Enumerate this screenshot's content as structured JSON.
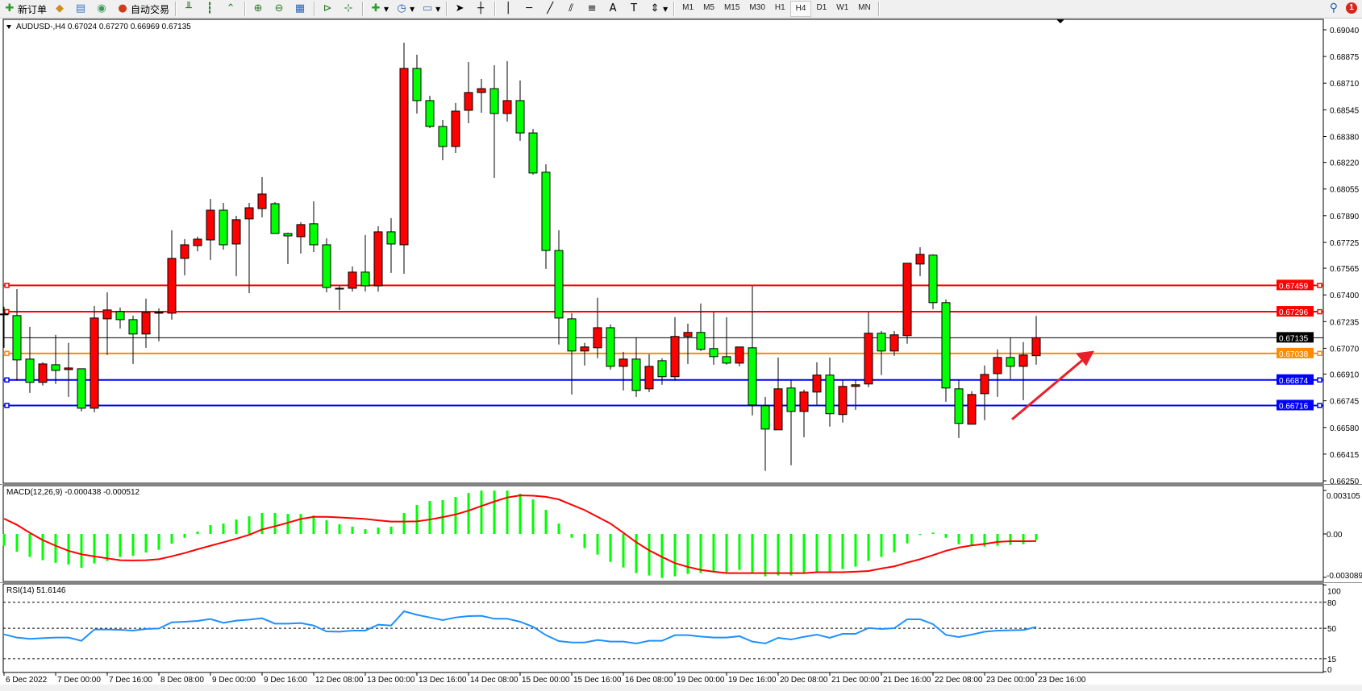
{
  "toolbar": {
    "new_order": "新订单",
    "auto_trading": "自动交易",
    "timeframes": [
      "M1",
      "M5",
      "M15",
      "M30",
      "H1",
      "H4",
      "D1",
      "W1",
      "MN"
    ],
    "active_timeframe": "H4",
    "notification_count": "1"
  },
  "chart": {
    "symbol_header": "AUDUSD-,H4  0.67024 0.67270 0.66969 0.67135",
    "bull_color": "#ff0000",
    "bear_color": "#00ff00",
    "price_ticks": [
      "0.69040",
      "0.68875",
      "0.68710",
      "0.68545",
      "0.68380",
      "0.68220",
      "0.68055",
      "0.67890",
      "0.67725",
      "0.67565",
      "0.67400",
      "0.67235",
      "0.67070",
      "0.66910",
      "0.66745",
      "0.66580",
      "0.66415",
      "0.66250"
    ],
    "bid_price": "0.67135",
    "levels": [
      {
        "price": "0.67459",
        "color": "#ff0000"
      },
      {
        "price": "0.67296",
        "color": "#ff0000"
      },
      {
        "price": "0.67038",
        "color": "#ff8c00"
      },
      {
        "price": "0.66874",
        "color": "#0000ff"
      },
      {
        "price": "0.66716",
        "color": "#0000ff"
      }
    ],
    "annotation": {
      "type": "arrow",
      "color": "#e8202a",
      "from_price": 0.6663,
      "to_price": 0.6702,
      "direction": "up-right"
    },
    "time_labels": [
      "6 Dec 2022",
      "7 Dec 00:00",
      "7 Dec 16:00",
      "8 Dec 08:00",
      "9 Dec 00:00",
      "9 Dec 16:00",
      "12 Dec 08:00",
      "13 Dec 00:00",
      "13 Dec 16:00",
      "14 Dec 08:00",
      "15 Dec 00:00",
      "15 Dec 16:00",
      "16 Dec 08:00",
      "19 Dec 00:00",
      "19 Dec 16:00",
      "20 Dec 08:00",
      "21 Dec 00:00",
      "21 Dec 16:00",
      "22 Dec 08:00",
      "23 Dec 00:00",
      "23 Dec 16:00"
    ],
    "ohlc": [
      [
        0.67282,
        0.67327,
        0.67073,
        0.67282
      ],
      [
        0.67272,
        0.67436,
        0.66869,
        0.66998
      ],
      [
        0.67003,
        0.67202,
        0.66794,
        0.66859
      ],
      [
        0.66859,
        0.66983,
        0.66839,
        0.66973
      ],
      [
        0.66968,
        0.67153,
        0.66849,
        0.66933
      ],
      [
        0.66938,
        0.67103,
        0.66769,
        0.66948
      ],
      [
        0.66943,
        0.66943,
        0.66679,
        0.66699
      ],
      [
        0.66699,
        0.67332,
        0.66674,
        0.67257
      ],
      [
        0.67252,
        0.67416,
        0.67028,
        0.67307
      ],
      [
        0.67297,
        0.67322,
        0.67192,
        0.67247
      ],
      [
        0.67247,
        0.67272,
        0.66973,
        0.67158
      ],
      [
        0.67158,
        0.67377,
        0.67073,
        0.67292
      ],
      [
        0.67287,
        0.67317,
        0.67113,
        0.67292
      ],
      [
        0.67287,
        0.678,
        0.67247,
        0.67626
      ],
      [
        0.67626,
        0.67745,
        0.67521,
        0.6771
      ],
      [
        0.67705,
        0.6776,
        0.6767,
        0.67745
      ],
      [
        0.6774,
        0.67994,
        0.67616,
        0.67924
      ],
      [
        0.67924,
        0.67969,
        0.6768,
        0.6771
      ],
      [
        0.67715,
        0.6789,
        0.67516,
        0.67865
      ],
      [
        0.6787,
        0.67969,
        0.67411,
        0.67939
      ],
      [
        0.67934,
        0.68129,
        0.6788,
        0.68024
      ],
      [
        0.67964,
        0.67974,
        0.6778,
        0.6778
      ],
      [
        0.6778,
        0.67785,
        0.67591,
        0.67765
      ],
      [
        0.6776,
        0.6785,
        0.67656,
        0.67835
      ],
      [
        0.6784,
        0.67979,
        0.67665,
        0.6771
      ],
      [
        0.6771,
        0.6775,
        0.67416,
        0.67446
      ],
      [
        0.67436,
        0.67456,
        0.67307,
        0.67441
      ],
      [
        0.67441,
        0.67576,
        0.67421,
        0.67541
      ],
      [
        0.67541,
        0.6777,
        0.67421,
        0.67456
      ],
      [
        0.67456,
        0.67825,
        0.67421,
        0.6779
      ],
      [
        0.6779,
        0.67875,
        0.67536,
        0.67715
      ],
      [
        0.6771,
        0.6896,
        0.67531,
        0.68801
      ],
      [
        0.68801,
        0.68886,
        0.68522,
        0.68602
      ],
      [
        0.68602,
        0.68632,
        0.68432,
        0.68442
      ],
      [
        0.68442,
        0.68482,
        0.68233,
        0.68318
      ],
      [
        0.68318,
        0.68587,
        0.68278,
        0.68537
      ],
      [
        0.68542,
        0.68841,
        0.68462,
        0.68652
      ],
      [
        0.68652,
        0.68736,
        0.68527,
        0.68676
      ],
      [
        0.68676,
        0.68821,
        0.68124,
        0.68522
      ],
      [
        0.68522,
        0.68846,
        0.68472,
        0.68602
      ],
      [
        0.68602,
        0.68726,
        0.68353,
        0.68402
      ],
      [
        0.68402,
        0.68427,
        0.68144,
        0.68154
      ],
      [
        0.68159,
        0.68208,
        0.67561,
        0.67675
      ],
      [
        0.67675,
        0.678,
        0.67093,
        0.67257
      ],
      [
        0.67252,
        0.67287,
        0.66784,
        0.67053
      ],
      [
        0.67053,
        0.67103,
        0.66963,
        0.67078
      ],
      [
        0.67073,
        0.67382,
        0.67008,
        0.67197
      ],
      [
        0.67197,
        0.67217,
        0.66938,
        0.66958
      ],
      [
        0.66958,
        0.67048,
        0.66809,
        0.67003
      ],
      [
        0.67003,
        0.67138,
        0.66769,
        0.66809
      ],
      [
        0.66819,
        0.67033,
        0.66799,
        0.66958
      ],
      [
        0.66993,
        0.67008,
        0.66844,
        0.66894
      ],
      [
        0.66894,
        0.67262,
        0.66869,
        0.67143
      ],
      [
        0.67143,
        0.67222,
        0.66973,
        0.67168
      ],
      [
        0.67168,
        0.67347,
        0.67053,
        0.67063
      ],
      [
        0.67068,
        0.67292,
        0.66968,
        0.67018
      ],
      [
        0.67018,
        0.67262,
        0.66968,
        0.66978
      ],
      [
        0.66978,
        0.67078,
        0.66958,
        0.67078
      ],
      [
        0.67073,
        0.67456,
        0.66655,
        0.66719
      ],
      [
        0.66714,
        0.66769,
        0.66311,
        0.6657
      ],
      [
        0.66565,
        0.67013,
        0.66565,
        0.66819
      ],
      [
        0.66824,
        0.66874,
        0.66346,
        0.66679
      ],
      [
        0.66679,
        0.66814,
        0.6652,
        0.66799
      ],
      [
        0.66799,
        0.66983,
        0.66719,
        0.66904
      ],
      [
        0.66904,
        0.67013,
        0.66585,
        0.66665
      ],
      [
        0.6666,
        0.66874,
        0.6661,
        0.66834
      ],
      [
        0.66834,
        0.66874,
        0.66689,
        0.66844
      ],
      [
        0.66849,
        0.67292,
        0.66829,
        0.67163
      ],
      [
        0.67163,
        0.67177,
        0.66904,
        0.67053
      ],
      [
        0.67053,
        0.67177,
        0.67023,
        0.67153
      ],
      [
        0.67148,
        0.67596,
        0.67098,
        0.67596
      ],
      [
        0.67591,
        0.67695,
        0.67516,
        0.67651
      ],
      [
        0.67646,
        0.67651,
        0.67312,
        0.67352
      ],
      [
        0.67352,
        0.67372,
        0.66739,
        0.66824
      ],
      [
        0.66819,
        0.66874,
        0.66515,
        0.66605
      ],
      [
        0.666,
        0.66804,
        0.666,
        0.66784
      ],
      [
        0.66789,
        0.66963,
        0.66625,
        0.66908
      ],
      [
        0.66913,
        0.67063,
        0.66769,
        0.67013
      ],
      [
        0.67013,
        0.67138,
        0.66879,
        0.66958
      ],
      [
        0.66958,
        0.67108,
        0.66749,
        0.67028
      ],
      [
        0.67024,
        0.6727,
        0.66969,
        0.67135
      ]
    ]
  },
  "macd": {
    "label": "MACD(12,26,9) -0.000438 -0.000512",
    "ticks": [
      "0.003105",
      "0.00",
      "-0.003089"
    ],
    "hist_color": "#00ff00",
    "signal_color": "#ff0000",
    "histogram": [
      -0.00084,
      -0.00126,
      -0.00164,
      -0.00187,
      -0.00206,
      -0.00218,
      -0.00241,
      -0.0021,
      -0.00193,
      -0.00164,
      -0.00155,
      -0.00132,
      -0.00113,
      -0.00069,
      -0.00027,
      0.00017,
      0.00063,
      0.00074,
      0.00103,
      0.00126,
      0.00149,
      0.00149,
      0.00143,
      0.00143,
      0.00132,
      0.00097,
      0.00069,
      0.00052,
      0.00034,
      0.00046,
      0.00052,
      0.00149,
      0.00206,
      0.00235,
      0.00241,
      0.00264,
      0.00292,
      0.00309,
      0.00309,
      0.00309,
      0.00287,
      0.00246,
      0.00172,
      0.00074,
      -0.00027,
      -0.00101,
      -0.00147,
      -0.00199,
      -0.00239,
      -0.00279,
      -0.00296,
      -0.00313,
      -0.00302,
      -0.00285,
      -0.00279,
      -0.00269,
      -0.00273,
      -0.00256,
      -0.00279,
      -0.00302,
      -0.00296,
      -0.00296,
      -0.00279,
      -0.00269,
      -0.00268,
      -0.0025,
      -0.00233,
      -0.00193,
      -0.00164,
      -0.0013,
      -0.00067,
      -8e-05,
      0.0001,
      -0.00027,
      -0.00073,
      -0.00078,
      -0.0009,
      -0.00084,
      -0.00078,
      -0.00073,
      -0.000438
    ],
    "signal": [
      0.00109,
      0.00065,
      8e-05,
      -0.00044,
      -0.00084,
      -0.0012,
      -0.00145,
      -0.0016,
      -0.00174,
      -0.00187,
      -0.00189,
      -0.00187,
      -0.0018,
      -0.00159,
      -0.00136,
      -0.00109,
      -0.00084,
      -0.00059,
      -0.00034,
      -6e-05,
      0.00032,
      0.00055,
      0.0008,
      0.00107,
      0.00122,
      0.00122,
      0.00118,
      0.00113,
      0.00107,
      0.00097,
      0.00088,
      0.00088,
      0.0009,
      0.00103,
      0.0012,
      0.00139,
      0.00166,
      0.00199,
      0.00231,
      0.0026,
      0.00275,
      0.00273,
      0.00265,
      0.00246,
      0.00208,
      0.0017,
      0.00122,
      0.00074,
      8e-05,
      -0.00059,
      -0.00117,
      -0.00164,
      -0.00208,
      -0.00235,
      -0.00256,
      -0.00269,
      -0.00279,
      -0.00279,
      -0.00279,
      -0.00279,
      -0.00279,
      -0.00279,
      -0.00279,
      -0.00273,
      -0.00273,
      -0.00273,
      -0.00269,
      -0.00264,
      -0.00246,
      -0.00231,
      -0.00204,
      -0.0018,
      -0.00151,
      -0.0012,
      -0.00097,
      -0.00082,
      -0.00071,
      -0.00057,
      -0.00052,
      -0.00052,
      -0.000512
    ]
  },
  "rsi": {
    "label": "RSI(14) 51.6146",
    "ticks": [
      "100",
      "80",
      "50",
      "15",
      "0"
    ],
    "line_color": "#1e90ff",
    "values": [
      43.0,
      39.3,
      37.8,
      38.7,
      39.3,
      39.3,
      35.6,
      48.6,
      48.6,
      48.3,
      47.4,
      49.2,
      49.8,
      56.9,
      57.6,
      58.5,
      60.7,
      56.3,
      58.8,
      60.0,
      61.6,
      55.4,
      55.4,
      56.0,
      53.2,
      46.4,
      46.1,
      47.4,
      47.4,
      54.2,
      53.2,
      69.6,
      65.6,
      62.5,
      59.4,
      62.5,
      64.1,
      64.4,
      61.0,
      61.0,
      57.6,
      51.7,
      42.1,
      35.3,
      33.7,
      33.7,
      36.5,
      34.7,
      34.7,
      32.5,
      35.6,
      35.6,
      42.1,
      42.1,
      40.5,
      39.3,
      39.3,
      40.9,
      34.7,
      32.5,
      39.0,
      37.1,
      40.2,
      42.7,
      39.0,
      43.6,
      43.6,
      50.4,
      49.2,
      50.1,
      60.4,
      60.4,
      54.8,
      42.4,
      39.9,
      42.7,
      46.1,
      47.4,
      47.7,
      48.0,
      51.6
    ]
  }
}
